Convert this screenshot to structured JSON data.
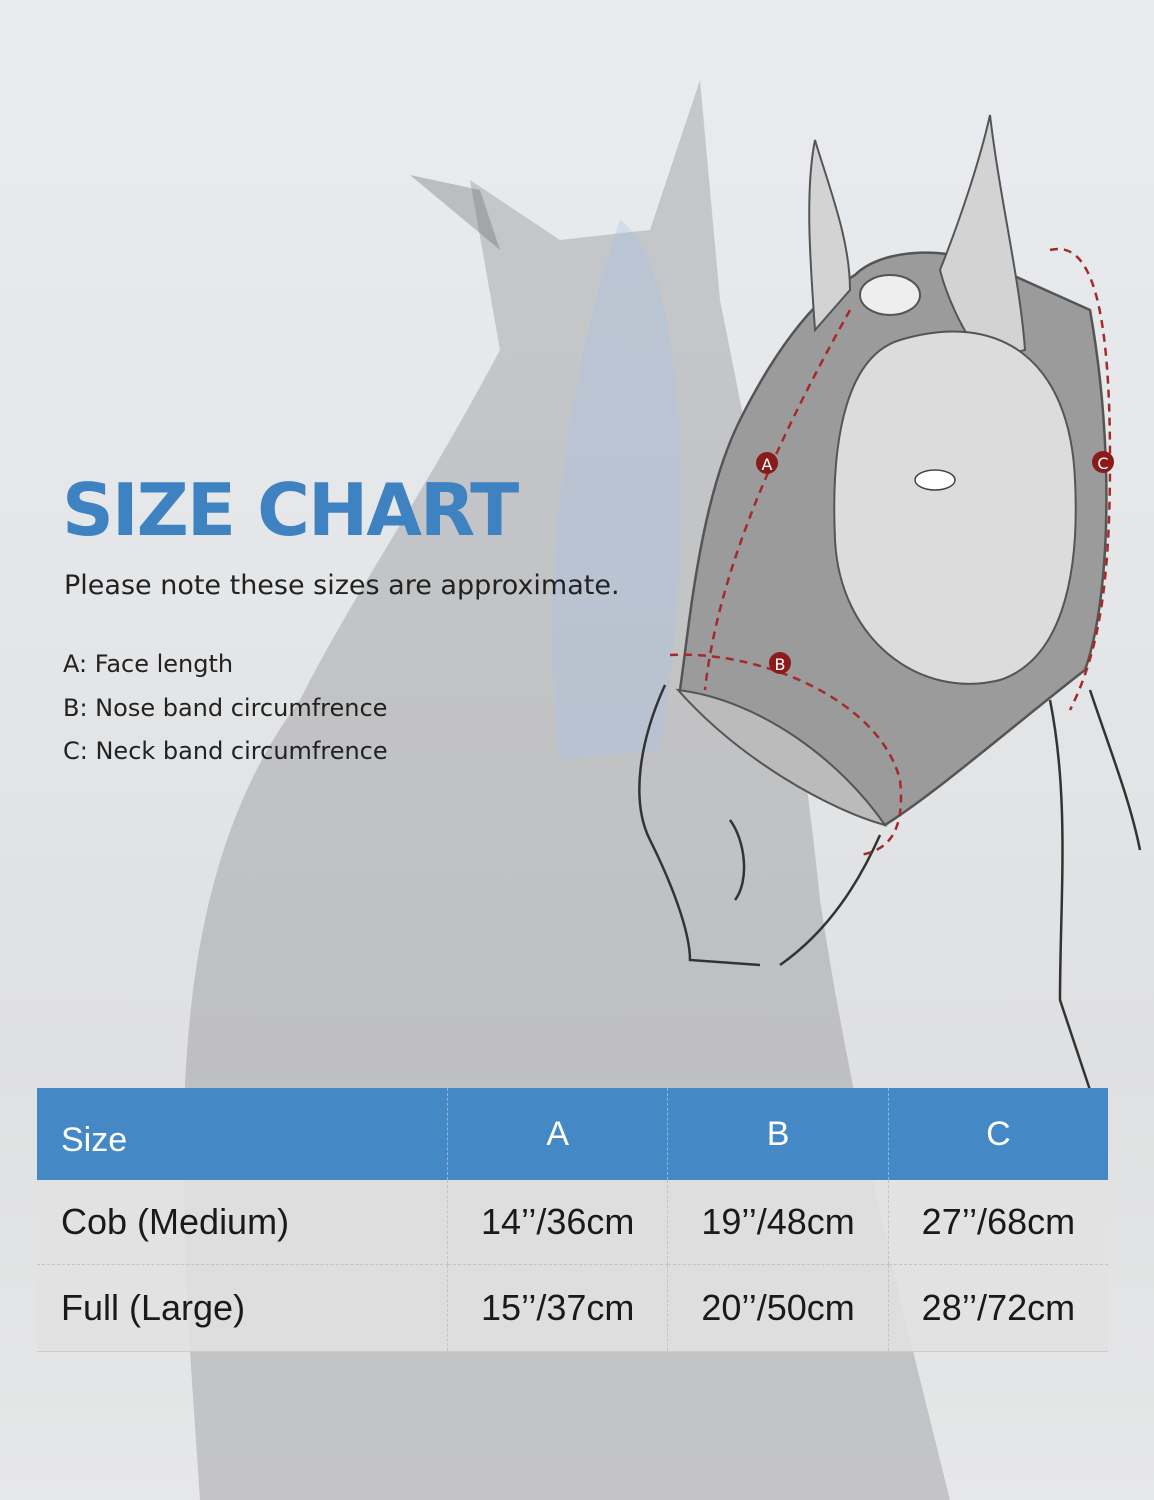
{
  "title": "SIZE CHART",
  "note": "Please note these sizes are approximate.",
  "legend": [
    "A: Face length",
    "B: Nose band circumfrence",
    "C: Neck band circumfrence"
  ],
  "diagram": {
    "markers": [
      "A",
      "B",
      "C"
    ],
    "marker_color": "#8b1a1a"
  },
  "table": {
    "headers": [
      "Size",
      "A",
      "B",
      "C"
    ],
    "rows": [
      [
        "Cob (Medium)",
        "14’’/36cm",
        "19’’/48cm",
        "27’’/68cm"
      ],
      [
        "Full (Large)",
        "15’’/37cm",
        "20’’/50cm",
        "28’’/72cm"
      ]
    ],
    "header_color": "#4488c6"
  },
  "colors": {
    "title": "#3f82c2"
  }
}
